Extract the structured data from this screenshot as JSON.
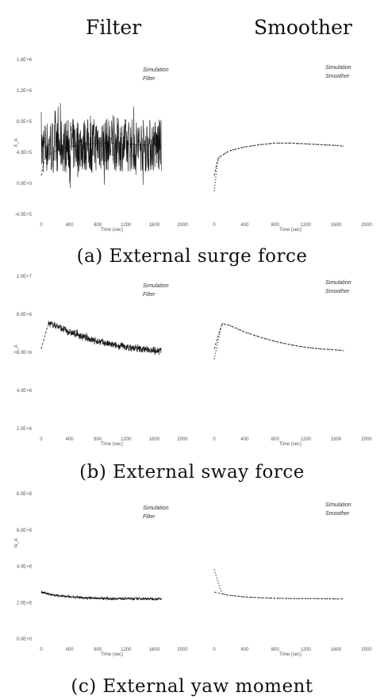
{
  "header": {
    "filter_title": "Filter",
    "smoother_title": "Smoother"
  },
  "captions": [
    "(a) External surge force",
    "(b) External sway force",
    "(c) External yaw moment"
  ],
  "chart_data": [
    {
      "id": "surge-filter",
      "type": "line",
      "panel": "a",
      "column": "filter",
      "xlabel": "Time (sec)",
      "ylabel": "X_A",
      "xticks": [
        "0",
        "400",
        "800",
        "1200",
        "1600",
        "2000"
      ],
      "yticks": [
        "1.6E+6",
        "1.2E+6",
        "8.0E+5",
        "4.0E+5",
        "0.0E+0",
        "-4.0E+5"
      ],
      "xlim": [
        0,
        2000
      ],
      "ylim": [
        -400000,
        1600000
      ],
      "series": [
        {
          "name": "Simulation",
          "style": "dashed",
          "x": [
            0,
            50,
            200,
            400,
            600,
            800,
            1000,
            1200,
            1400,
            1600,
            1700
          ],
          "y": [
            100000,
            330000,
            420000,
            470000,
            500000,
            520000,
            520000,
            510000,
            500000,
            490000,
            480000
          ]
        },
        {
          "name": "Filter",
          "style": "noisy",
          "x": [
            0,
            100,
            400,
            800,
            1200,
            1600,
            1700
          ],
          "y": [
            450000,
            480000,
            490000,
            500000,
            500000,
            490000,
            480000
          ],
          "amplitude": 350000
        }
      ]
    },
    {
      "id": "surge-smoother",
      "type": "line",
      "panel": "a",
      "column": "smoother",
      "xlabel": "Time (sec)",
      "ylabel": "",
      "xticks": [
        "0",
        "400",
        "800",
        "1200",
        "1600",
        "2000"
      ],
      "yticks": [],
      "xlim": [
        0,
        2000
      ],
      "ylim": [
        -400000,
        1600000
      ],
      "series": [
        {
          "name": "Simulation",
          "style": "dashed",
          "x": [
            0,
            50,
            200,
            400,
            600,
            800,
            1000,
            1200,
            1400,
            1600,
            1700
          ],
          "y": [
            100000,
            330000,
            420000,
            470000,
            500000,
            520000,
            520000,
            510000,
            500000,
            490000,
            480000
          ]
        },
        {
          "name": "Smoother",
          "style": "dotted",
          "x": [
            0,
            50,
            200,
            400,
            600,
            800,
            1000,
            1200,
            1400,
            1600,
            1700
          ],
          "y": [
            -100000,
            330000,
            420000,
            470000,
            500000,
            520000,
            520000,
            510000,
            500000,
            490000,
            480000
          ]
        }
      ]
    },
    {
      "id": "sway-filter",
      "type": "line",
      "panel": "b",
      "column": "filter",
      "xlabel": "Time (sec)",
      "ylabel": "Y_A",
      "xticks": [
        "0",
        "400",
        "800",
        "1200",
        "1600",
        "2000"
      ],
      "yticks": [
        "1.0E+7",
        "8.0E+6",
        "6.0E+6",
        "4.0E+6",
        "2.0E+6"
      ],
      "xlim": [
        0,
        2000
      ],
      "ylim": [
        1500000,
        10500000
      ],
      "series": [
        {
          "name": "Simulation",
          "style": "dashed",
          "x": [
            0,
            100,
            200,
            400,
            600,
            800,
            1000,
            1200,
            1400,
            1600,
            1700
          ],
          "y": [
            6200000,
            7700000,
            7600000,
            7200000,
            6900000,
            6650000,
            6450000,
            6300000,
            6200000,
            6150000,
            6100000
          ]
        },
        {
          "name": "Filter",
          "style": "noisy",
          "x": [
            100,
            200,
            400,
            600,
            800,
            1000,
            1200,
            1400,
            1600,
            1700
          ],
          "y": [
            7700000,
            7600000,
            7200000,
            6900000,
            6650000,
            6450000,
            6300000,
            6200000,
            6150000,
            6100000
          ],
          "amplitude": 200000
        }
      ]
    },
    {
      "id": "sway-smoother",
      "type": "line",
      "panel": "b",
      "column": "smoother",
      "xlabel": "Time (sec)",
      "ylabel": "",
      "xticks": [
        "0",
        "400",
        "800",
        "1200",
        "1600",
        "2000"
      ],
      "yticks": [],
      "xlim": [
        0,
        2000
      ],
      "ylim": [
        1500000,
        10500000
      ],
      "series": [
        {
          "name": "Simulation",
          "style": "dashed",
          "x": [
            0,
            100,
            200,
            400,
            600,
            800,
            1000,
            1200,
            1400,
            1600,
            1700
          ],
          "y": [
            6200000,
            7700000,
            7600000,
            7200000,
            6900000,
            6650000,
            6450000,
            6300000,
            6200000,
            6150000,
            6100000
          ]
        },
        {
          "name": "Smoother",
          "style": "dotted",
          "x": [
            0,
            100,
            200,
            400,
            600,
            800,
            1000,
            1200,
            1400,
            1600,
            1700
          ],
          "y": [
            5600000,
            7700000,
            7600000,
            7200000,
            6900000,
            6650000,
            6450000,
            6300000,
            6200000,
            6150000,
            6100000
          ]
        }
      ]
    },
    {
      "id": "yaw-filter",
      "type": "line",
      "panel": "c",
      "column": "filter",
      "xlabel": "Time (sec)",
      "ylabel": "N_A",
      "xticks": [
        "0",
        "400",
        "800",
        "1200",
        "1600",
        "2000"
      ],
      "yticks": [
        "8.0E+8",
        "6.0E+8",
        "4.0E+8",
        "2.0E+8",
        "0.0E+0"
      ],
      "xlim": [
        0,
        2000
      ],
      "ylim": [
        -30000000,
        870000000
      ],
      "series": [
        {
          "name": "Simulation",
          "style": "dashed",
          "x": [
            0,
            100,
            200,
            400,
            600,
            800,
            1000,
            1200,
            1400,
            1600,
            1700
          ],
          "y": [
            260000000,
            250000000,
            240000000,
            230000000,
            225000000,
            222000000,
            220000000,
            220000000,
            219000000,
            218000000,
            218000000
          ]
        },
        {
          "name": "Filter",
          "style": "noisy",
          "x": [
            0,
            100,
            200,
            400,
            600,
            800,
            1000,
            1200,
            1400,
            1600,
            1700
          ],
          "y": [
            260000000,
            250000000,
            240000000,
            230000000,
            225000000,
            222000000,
            220000000,
            220000000,
            219000000,
            218000000,
            218000000
          ],
          "amplitude": 8000000
        }
      ]
    },
    {
      "id": "yaw-smoother",
      "type": "line",
      "panel": "c",
      "column": "smoother",
      "xlabel": "Time (sec)",
      "ylabel": "",
      "xticks": [
        "0",
        "400",
        "800",
        "1200",
        "1600",
        "2000"
      ],
      "yticks": [],
      "xlim": [
        0,
        2000
      ],
      "ylim": [
        -30000000,
        870000000
      ],
      "series": [
        {
          "name": "Simulation",
          "style": "dashed",
          "x": [
            0,
            100,
            200,
            400,
            600,
            800,
            1000,
            1200,
            1400,
            1600,
            1700
          ],
          "y": [
            260000000,
            250000000,
            240000000,
            230000000,
            225000000,
            222000000,
            220000000,
            220000000,
            219000000,
            218000000,
            218000000
          ]
        },
        {
          "name": "Smoother",
          "style": "dotted",
          "x": [
            0,
            100,
            200,
            400,
            600,
            800,
            1000,
            1200,
            1400,
            1600,
            1700
          ],
          "y": [
            400000000,
            250000000,
            240000000,
            230000000,
            225000000,
            222000000,
            220000000,
            220000000,
            219000000,
            218000000,
            218000000
          ]
        }
      ]
    }
  ]
}
